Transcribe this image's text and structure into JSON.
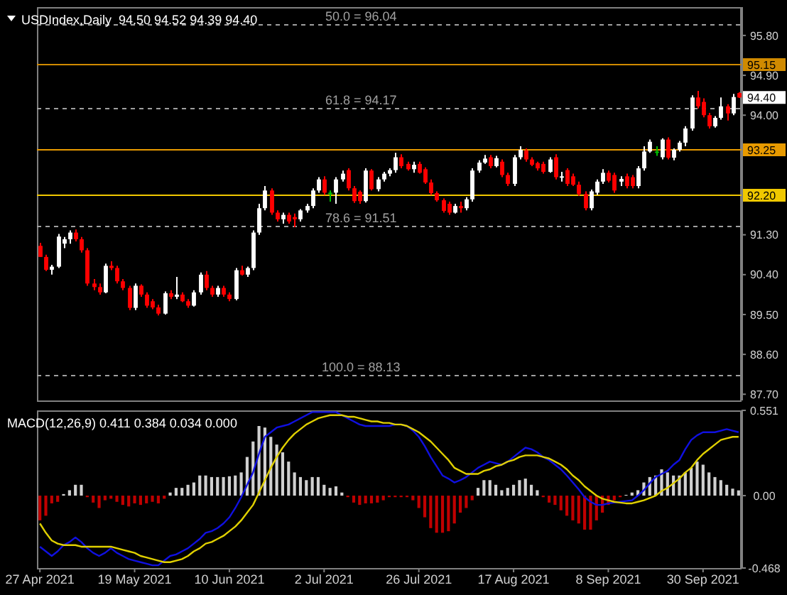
{
  "chart_data": [
    {
      "type": "candlestick",
      "title": "USDIndex,Daily  94.50 94.52 94.39 94.40",
      "categories": [
        null,
        null,
        null,
        null,
        null,
        null,
        null,
        null,
        null,
        null,
        null,
        null,
        null,
        null,
        null,
        null,
        null,
        null,
        null,
        null,
        null,
        null,
        null,
        null,
        null,
        null,
        null,
        null,
        null,
        null,
        null,
        null,
        null,
        null,
        null,
        null,
        null,
        null,
        null,
        null,
        null,
        null,
        null,
        null,
        null,
        null,
        null,
        null,
        null,
        null,
        null,
        null,
        null,
        null,
        null,
        null,
        null,
        null,
        null,
        null,
        null,
        null,
        null,
        null,
        null,
        null,
        null,
        null,
        null,
        null,
        null,
        null,
        null,
        null,
        null,
        null,
        null,
        null,
        null,
        null,
        null,
        null,
        null,
        null,
        null,
        null,
        null,
        null,
        null,
        null,
        null,
        null,
        null,
        null,
        null,
        null,
        null,
        null,
        null,
        null,
        null,
        null,
        null,
        null,
        null,
        null,
        null,
        null,
        null,
        null,
        null,
        null,
        null,
        null,
        null,
        null,
        null,
        null,
        null
      ],
      "ohlc": [
        [
          91.05,
          91.12,
          90.8,
          90.8
        ],
        [
          90.8,
          90.85,
          90.48,
          90.51
        ],
        [
          90.51,
          90.62,
          90.4,
          90.58
        ],
        [
          90.58,
          91.32,
          90.55,
          91.26
        ],
        [
          91.1,
          91.25,
          91.0,
          91.2
        ],
        [
          91.2,
          91.4,
          91.1,
          91.35
        ],
        [
          91.35,
          91.42,
          91.15,
          91.2
        ],
        [
          91.2,
          91.25,
          90.9,
          90.95
        ],
        [
          90.95,
          91.0,
          90.15,
          90.2
        ],
        [
          90.2,
          90.3,
          90.05,
          90.12
        ],
        [
          90.12,
          90.2,
          89.95,
          90.0
        ],
        [
          90.0,
          90.65,
          89.98,
          90.6
        ],
        [
          90.6,
          90.7,
          90.5,
          90.55
        ],
        [
          90.55,
          90.6,
          90.2,
          90.25
        ],
        [
          90.25,
          90.3,
          90.05,
          90.1
        ],
        [
          90.1,
          90.15,
          89.6,
          89.65
        ],
        [
          89.65,
          90.2,
          89.6,
          90.15
        ],
        [
          90.15,
          90.18,
          89.9,
          89.95
        ],
        [
          89.95,
          90.0,
          89.65,
          89.7
        ],
        [
          89.8,
          89.85,
          89.62,
          89.66
        ],
        [
          89.66,
          89.72,
          89.48,
          89.52
        ],
        [
          89.52,
          90.02,
          89.5,
          89.98
        ],
        [
          89.98,
          90.05,
          89.85,
          89.9
        ],
        [
          89.9,
          90.35,
          89.85,
          89.95
        ],
        [
          89.95,
          90.0,
          89.78,
          89.8
        ],
        [
          89.8,
          89.85,
          89.65,
          89.7
        ],
        [
          89.7,
          90.05,
          89.68,
          90.0
        ],
        [
          90.0,
          90.45,
          89.95,
          90.4
        ],
        [
          90.4,
          90.48,
          90.05,
          90.1
        ],
        [
          90.1,
          90.15,
          89.9,
          89.95
        ],
        [
          89.95,
          90.15,
          89.9,
          90.1
        ],
        [
          90.1,
          90.15,
          89.9,
          89.95
        ],
        [
          89.95,
          90.0,
          89.8,
          89.85
        ],
        [
          89.85,
          90.55,
          89.82,
          90.5
        ],
        [
          90.5,
          90.6,
          90.38,
          90.4
        ],
        [
          90.4,
          90.58,
          90.35,
          90.55
        ],
        [
          90.55,
          91.4,
          90.5,
          91.35
        ],
        [
          91.35,
          92.0,
          91.3,
          91.9
        ],
        [
          91.9,
          92.4,
          91.85,
          92.3
        ],
        [
          92.3,
          92.35,
          91.75,
          91.8
        ],
        [
          91.8,
          91.85,
          91.6,
          91.65
        ],
        [
          91.65,
          91.8,
          91.55,
          91.75
        ],
        [
          91.75,
          91.8,
          91.55,
          91.6
        ],
        [
          91.7,
          91.78,
          91.47,
          91.65
        ],
        [
          91.65,
          91.88,
          91.6,
          91.85
        ],
        [
          91.85,
          92.0,
          91.8,
          91.95
        ],
        [
          91.95,
          92.35,
          91.9,
          92.3
        ],
        [
          92.3,
          92.6,
          92.25,
          92.55
        ],
        [
          92.55,
          92.62,
          92.2,
          92.25
        ],
        [
          92.25,
          92.3,
          92.05,
          92.25
        ],
        [
          92.25,
          92.6,
          92.0,
          92.55
        ],
        [
          92.55,
          92.75,
          92.5,
          92.68
        ],
        [
          92.76,
          92.8,
          92.3,
          92.35
        ],
        [
          92.35,
          92.4,
          92.02,
          92.06
        ],
        [
          92.27,
          92.3,
          92.0,
          92.06
        ],
        [
          92.06,
          92.8,
          92.03,
          92.75
        ],
        [
          92.75,
          92.78,
          92.3,
          92.33
        ],
        [
          92.33,
          92.6,
          92.28,
          92.55
        ],
        [
          92.55,
          92.72,
          92.5,
          92.68
        ],
        [
          92.68,
          92.8,
          92.62,
          92.76
        ],
        [
          92.76,
          93.15,
          92.7,
          93.05
        ],
        [
          93.05,
          93.12,
          92.8,
          92.85
        ],
        [
          92.9,
          92.95,
          92.75,
          92.78
        ],
        [
          92.78,
          92.95,
          92.7,
          92.88
        ],
        [
          92.9,
          92.95,
          92.68,
          92.7
        ],
        [
          92.78,
          92.82,
          92.45,
          92.48
        ],
        [
          92.48,
          92.55,
          92.2,
          92.24
        ],
        [
          92.24,
          92.28,
          92.05,
          92.08
        ],
        [
          92.08,
          92.12,
          91.8,
          91.84
        ],
        [
          92.0,
          92.05,
          91.75,
          91.8
        ],
        [
          91.8,
          92.0,
          91.78,
          91.95
        ],
        [
          91.95,
          92.05,
          91.8,
          91.9
        ],
        [
          91.9,
          92.15,
          91.85,
          92.1
        ],
        [
          92.1,
          92.8,
          92.05,
          92.75
        ],
        [
          92.75,
          92.98,
          92.7,
          92.93
        ],
        [
          92.93,
          93.1,
          92.9,
          93.02
        ],
        [
          93.05,
          93.1,
          92.8,
          92.85
        ],
        [
          92.85,
          93.08,
          92.82,
          93.03
        ],
        [
          92.95,
          93.0,
          92.6,
          92.65
        ],
        [
          92.65,
          92.7,
          92.4,
          92.45
        ],
        [
          92.45,
          93.1,
          92.4,
          93.05
        ],
        [
          93.05,
          93.3,
          93.0,
          93.22
        ],
        [
          93.2,
          93.25,
          92.95,
          93.0
        ],
        [
          93.0,
          93.05,
          92.85,
          92.88
        ],
        [
          92.92,
          92.95,
          92.75,
          92.8
        ],
        [
          92.9,
          92.95,
          92.68,
          92.72
        ],
        [
          92.72,
          93.05,
          92.7,
          93.0
        ],
        [
          93.05,
          93.12,
          92.55,
          92.6
        ],
        [
          92.6,
          92.72,
          92.5,
          92.62
        ],
        [
          92.76,
          92.8,
          92.4,
          92.45
        ],
        [
          92.62,
          92.68,
          92.4,
          92.43
        ],
        [
          92.43,
          92.5,
          92.18,
          92.22
        ],
        [
          92.22,
          92.28,
          91.85,
          91.9
        ],
        [
          91.9,
          92.32,
          91.85,
          92.28
        ],
        [
          92.25,
          92.55,
          92.2,
          92.5
        ],
        [
          92.5,
          92.78,
          92.45,
          92.7
        ],
        [
          92.7,
          92.75,
          92.48,
          92.52
        ],
        [
          92.65,
          92.7,
          92.25,
          92.3
        ],
        [
          92.5,
          92.62,
          92.4,
          92.56
        ],
        [
          92.62,
          92.68,
          92.35,
          92.4
        ],
        [
          92.6,
          92.65,
          92.35,
          92.4
        ],
        [
          92.4,
          92.85,
          92.35,
          92.8
        ],
        [
          92.8,
          93.3,
          92.75,
          93.18
        ],
        [
          93.18,
          93.45,
          93.15,
          93.4
        ],
        [
          93.18,
          93.3,
          93.08,
          93.18
        ],
        [
          93.05,
          93.48,
          93.0,
          93.45
        ],
        [
          93.45,
          93.5,
          93.0,
          93.04
        ],
        [
          93.04,
          93.25,
          92.98,
          93.22
        ],
        [
          93.22,
          93.42,
          93.18,
          93.38
        ],
        [
          93.38,
          93.75,
          93.3,
          93.7
        ],
        [
          93.7,
          94.45,
          93.65,
          94.4
        ],
        [
          94.4,
          94.55,
          94.15,
          94.2
        ],
        [
          94.3,
          94.38,
          93.95,
          94.0
        ],
        [
          94.0,
          94.05,
          93.7,
          93.75
        ],
        [
          93.75,
          93.98,
          93.72,
          93.94
        ],
        [
          93.94,
          94.4,
          93.9,
          94.2
        ],
        [
          94.2,
          94.25,
          93.88,
          94.04
        ],
        [
          94.04,
          94.48,
          94.0,
          94.41
        ],
        [
          94.5,
          94.52,
          94.39,
          94.4
        ]
      ],
      "colors": [
        "#ff0000",
        "#ff0000",
        "#ffffff",
        "#ffffff",
        "#ffffff",
        "#ffffff",
        "#ff0000",
        "#ff0000",
        "#ff0000",
        "#ff0000",
        "#ff0000",
        "#ffffff",
        "#ff0000",
        "#ff0000",
        "#ff0000",
        "#ff0000",
        "#ffffff",
        "#ff0000",
        "#ff0000",
        "#ff0000",
        "#ff0000",
        "#ffffff",
        "#ff0000",
        "#ffffff",
        "#ff0000",
        "#ff0000",
        "#ffffff",
        "#ffffff",
        "#ff0000",
        "#ff0000",
        "#ffffff",
        "#ff0000",
        "#ff0000",
        "#ffffff",
        "#ff0000",
        "#ffffff",
        "#ffffff",
        "#ffffff",
        "#ffffff",
        "#ff0000",
        "#ff0000",
        "#ffffff",
        "#ff0000",
        "#ff0000",
        "#ffffff",
        "#ffffff",
        "#ffffff",
        "#ffffff",
        "#ff0000",
        "#00c000",
        "#ffffff",
        "#ffffff",
        "#ff0000",
        "#ff0000",
        "#ff0000",
        "#ffffff",
        "#ff0000",
        "#ffffff",
        "#ffffff",
        "#ffffff",
        "#ffffff",
        "#ff0000",
        "#ff0000",
        "#ffffff",
        "#ff0000",
        "#ff0000",
        "#ff0000",
        "#ff0000",
        "#ff0000",
        "#ff0000",
        "#ffffff",
        "#ff0000",
        "#ffffff",
        "#ffffff",
        "#ffffff",
        "#ffffff",
        "#ff0000",
        "#ffffff",
        "#ff0000",
        "#ff0000",
        "#ffffff",
        "#ffffff",
        "#ff0000",
        "#ff0000",
        "#ff0000",
        "#ff0000",
        "#ffffff",
        "#ff0000",
        "#ffffff",
        "#ff0000",
        "#ff0000",
        "#ff0000",
        "#ff0000",
        "#ffffff",
        "#ffffff",
        "#ffffff",
        "#ff0000",
        "#ff0000",
        "#ffffff",
        "#ff0000",
        "#ff0000",
        "#ffffff",
        "#ffffff",
        "#ffffff",
        "#00c000",
        "#ffffff",
        "#ff0000",
        "#ffffff",
        "#ffffff",
        "#ffffff",
        "#ffffff",
        "#ff0000",
        "#ff0000",
        "#ff0000",
        "#ffffff",
        "#ffffff",
        "#ff0000",
        "#ffffff",
        "#ff0000"
      ],
      "ylim": [
        87.56,
        96.44
      ],
      "yticks": [
        {
          "value": 95.8,
          "label": "95.80"
        },
        {
          "value": 94.9,
          "label": "94.90"
        },
        {
          "value": 94.0,
          "label": "94.00"
        },
        {
          "value": 93.1,
          "label": null
        },
        {
          "value": 92.2,
          "label": null
        },
        {
          "value": 91.3,
          "label": "91.30"
        },
        {
          "value": 90.4,
          "label": "90.40"
        },
        {
          "value": 89.5,
          "label": "89.50"
        },
        {
          "value": 88.6,
          "label": "88.60"
        },
        {
          "value": 87.7,
          "label": "87.70"
        }
      ],
      "ref_lines": [
        {
          "axis": "y",
          "value": 96.04,
          "label": "50.0 = 96.04",
          "color": "#a0a0a0",
          "line_style": "dashed"
        },
        {
          "axis": "y",
          "value": 95.15,
          "label": "95.15",
          "color": "#d08a00",
          "line_style": "solid"
        },
        {
          "axis": "y",
          "value": 94.17,
          "label": "61.8 = 94.17",
          "color": "#a0a0a0",
          "line_style": "dashed"
        },
        {
          "axis": "y",
          "value": 93.25,
          "label": "93.25",
          "color": "#e89a00",
          "line_style": "solid"
        },
        {
          "axis": "y",
          "value": 92.2,
          "label": "92.20",
          "color": "#f0c800",
          "line_style": "solid"
        },
        {
          "axis": "y",
          "value": 91.51,
          "label": "78.6 = 91.51",
          "color": "#a0a0a0",
          "line_style": "dashed"
        },
        {
          "axis": "y",
          "value": 88.13,
          "label": "100.0 = 88.13",
          "color": "#a0a0a0",
          "line_style": "dashed"
        }
      ],
      "annotations": [
        {
          "text": "94.40",
          "y": 94.4
        }
      ],
      "tick_labels": "y"
    },
    {
      "type": "bar",
      "title": "MACD(12,26,9) 0.411 0.384 0.034 0.000",
      "categories": [
        "27 Apr 2021",
        null,
        null,
        null,
        null,
        null,
        null,
        null,
        null,
        null,
        null,
        null,
        null,
        null,
        null,
        null,
        "19 May 2021",
        null,
        null,
        null,
        null,
        null,
        null,
        null,
        null,
        null,
        null,
        null,
        null,
        null,
        null,
        null,
        "10 Jun 2021",
        null,
        null,
        null,
        null,
        null,
        null,
        null,
        null,
        null,
        null,
        null,
        null,
        null,
        null,
        null,
        "2 Jul 2021",
        null,
        null,
        null,
        null,
        null,
        null,
        null,
        null,
        null,
        null,
        null,
        null,
        null,
        null,
        null,
        "26 Jul 2021",
        null,
        null,
        null,
        null,
        null,
        null,
        null,
        null,
        null,
        null,
        null,
        null,
        null,
        null,
        null,
        "17 Aug 2021",
        null,
        null,
        null,
        null,
        null,
        null,
        null,
        null,
        null,
        null,
        null,
        null,
        null,
        null,
        null,
        "8 Sep 2021",
        null,
        null,
        null,
        null,
        null,
        null,
        null,
        null,
        null,
        null,
        null,
        null,
        null,
        null,
        null,
        "30 Sep 2021",
        null,
        null,
        null,
        null,
        null,
        null
      ],
      "ylim": [
        -0.468,
        0.551
      ],
      "yticks": [
        0.551,
        {
          "value": 0,
          "label": "0.00"
        },
        -0.468
      ],
      "series": [
        {
          "type": "bar",
          "color": "#d0d0d0",
          "values": [
            null,
            null,
            null,
            null,
            0.01,
            0.035,
            0.07,
            0.07,
            null,
            null,
            null,
            null,
            null,
            null,
            null,
            null,
            null,
            null,
            null,
            null,
            null,
            null,
            0.02,
            0.05,
            0.05,
            0.07,
            0.085,
            0.13,
            0.13,
            0.12,
            0.12,
            0.12,
            0.125,
            0.13,
            0.15,
            0.25,
            0.35,
            0.45,
            0.44,
            0.38,
            0.33,
            0.28,
            0.22,
            0.15,
            0.12,
            0.1,
            0.12,
            0.12,
            0.07,
            0.05,
            0.06,
            0.02,
            null,
            null,
            null,
            null,
            null,
            null,
            null,
            null,
            null,
            null,
            null,
            null,
            null,
            null,
            null,
            null,
            null,
            null,
            null,
            null,
            null,
            null,
            0.05,
            0.1,
            0.1,
            0.07,
            0.035,
            0.05,
            0.07,
            0.1,
            0.11,
            0.07,
            0.035,
            null,
            null,
            null,
            null,
            null,
            null,
            null,
            null,
            null,
            null,
            null,
            null,
            null,
            null,
            0.005,
            0.02,
            0.035,
            0.085,
            0.12,
            0.13,
            0.17,
            0.15,
            0.13,
            0.13,
            0.15,
            0.18,
            0.22,
            0.2,
            0.15,
            0.12,
            0.1,
            0.07,
            0.045,
            0.034
          ]
        },
        {
          "type": "bar",
          "color": "#c00000",
          "values": [
            -0.16,
            -0.13,
            -0.05,
            -0.04,
            null,
            null,
            null,
            null,
            -0.01,
            -0.045,
            -0.08,
            -0.03,
            -0.02,
            -0.04,
            -0.06,
            -0.07,
            -0.05,
            -0.06,
            -0.05,
            -0.04,
            -0.05,
            -0.02,
            null,
            null,
            null,
            null,
            null,
            null,
            null,
            null,
            null,
            null,
            null,
            null,
            null,
            null,
            null,
            null,
            null,
            null,
            null,
            null,
            null,
            null,
            null,
            null,
            null,
            null,
            null,
            null,
            null,
            null,
            -0.01,
            -0.045,
            -0.06,
            -0.05,
            -0.05,
            -0.045,
            -0.03,
            -0.01,
            -0.01,
            -0.01,
            -0.01,
            -0.03,
            -0.08,
            -0.14,
            -0.21,
            -0.24,
            -0.24,
            -0.23,
            -0.18,
            -0.11,
            -0.08,
            -0.03,
            null,
            null,
            null,
            null,
            null,
            null,
            null,
            null,
            null,
            null,
            null,
            -0.01,
            -0.045,
            -0.06,
            -0.095,
            -0.13,
            -0.16,
            -0.18,
            -0.22,
            -0.22,
            -0.16,
            -0.11,
            -0.06,
            -0.03,
            -0.01,
            null,
            null,
            null,
            null,
            null,
            null,
            null,
            null,
            null,
            null,
            null,
            null,
            null,
            null,
            null,
            null,
            null,
            null,
            null,
            null
          ]
        },
        {
          "type": "line",
          "color": "#1010e0",
          "values": [
            -0.33,
            -0.36,
            -0.39,
            -0.36,
            -0.32,
            -0.3,
            -0.27,
            -0.3,
            -0.34,
            -0.37,
            -0.39,
            -0.37,
            -0.34,
            -0.37,
            -0.39,
            -0.41,
            -0.42,
            -0.43,
            -0.44,
            -0.45,
            -0.45,
            -0.42,
            -0.39,
            -0.38,
            -0.36,
            -0.34,
            -0.31,
            -0.28,
            -0.24,
            -0.23,
            -0.21,
            -0.18,
            -0.14,
            -0.08,
            -0.01,
            0.07,
            0.15,
            0.27,
            0.38,
            0.41,
            0.44,
            0.45,
            0.46,
            0.48,
            0.5,
            0.52,
            0.54,
            0.54,
            0.54,
            0.54,
            0.54,
            0.52,
            0.5,
            0.48,
            0.46,
            0.45,
            0.45,
            0.45,
            0.45,
            0.45,
            0.46,
            0.46,
            0.45,
            0.42,
            0.38,
            0.32,
            0.25,
            0.19,
            0.13,
            0.11,
            0.085,
            0.1,
            0.12,
            0.15,
            0.18,
            0.2,
            0.22,
            0.21,
            0.2,
            0.22,
            0.25,
            0.28,
            0.31,
            0.3,
            0.28,
            0.25,
            0.23,
            0.2,
            0.17,
            0.13,
            0.085,
            0.04,
            -0.01,
            -0.04,
            -0.06,
            -0.06,
            -0.05,
            -0.045,
            -0.04,
            -0.035,
            -0.03,
            0.0,
            0.035,
            0.08,
            0.12,
            0.14,
            0.16,
            0.2,
            0.23,
            0.3,
            0.36,
            0.39,
            0.41,
            0.41,
            0.41,
            0.42,
            0.43,
            0.42,
            0.41
          ]
        },
        {
          "type": "line",
          "color": "#e0d000",
          "values": [
            -0.18,
            -0.24,
            -0.29,
            -0.31,
            -0.32,
            -0.32,
            -0.32,
            -0.33,
            -0.33,
            -0.33,
            -0.33,
            -0.33,
            -0.33,
            -0.34,
            -0.35,
            -0.36,
            -0.37,
            -0.39,
            -0.4,
            -0.41,
            -0.42,
            -0.43,
            -0.43,
            -0.42,
            -0.41,
            -0.39,
            -0.36,
            -0.34,
            -0.31,
            -0.3,
            -0.28,
            -0.26,
            -0.23,
            -0.2,
            -0.16,
            -0.11,
            -0.06,
            0.02,
            0.1,
            0.18,
            0.25,
            0.31,
            0.36,
            0.4,
            0.43,
            0.46,
            0.48,
            0.5,
            0.51,
            0.52,
            0.52,
            0.52,
            0.51,
            0.51,
            0.5,
            0.49,
            0.48,
            0.48,
            0.47,
            0.47,
            0.46,
            0.46,
            0.45,
            0.43,
            0.41,
            0.38,
            0.35,
            0.31,
            0.27,
            0.23,
            0.18,
            0.16,
            0.14,
            0.14,
            0.14,
            0.16,
            0.17,
            0.19,
            0.2,
            0.22,
            0.23,
            0.25,
            0.26,
            0.26,
            0.26,
            0.25,
            0.24,
            0.22,
            0.2,
            0.17,
            0.13,
            0.1,
            0.06,
            0.03,
            0.0,
            -0.02,
            -0.03,
            -0.04,
            -0.045,
            -0.05,
            -0.05,
            -0.04,
            -0.03,
            -0.015,
            0.0,
            0.03,
            0.05,
            0.08,
            0.11,
            0.15,
            0.18,
            0.23,
            0.27,
            0.3,
            0.33,
            0.36,
            0.37,
            0.38,
            0.38
          ]
        }
      ]
    }
  ]
}
